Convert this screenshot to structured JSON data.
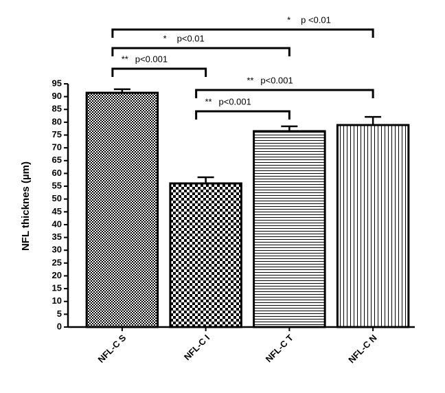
{
  "chart_data": {
    "type": "bar",
    "y_label": "NFL thicknes (µm)",
    "categories": [
      "NFL-C S",
      "NFL-C I",
      "NFL-C T",
      "NFL-C N"
    ],
    "values": [
      91.5,
      56.1,
      76.5,
      78.9
    ],
    "errors": [
      1.4,
      2.4,
      1.9,
      3.2
    ],
    "patterns": [
      "checker-fine",
      "checker",
      "horizontal",
      "vertical"
    ],
    "color": "#000000",
    "ylim": [
      0,
      95
    ],
    "yticks": [
      0,
      5,
      10,
      15,
      20,
      25,
      30,
      35,
      40,
      45,
      50,
      55,
      60,
      65,
      70,
      75,
      80,
      85,
      90,
      95
    ],
    "significance": [
      {
        "between": [
          "NFL-C S",
          "NFL-C N"
        ],
        "stars": "*",
        "label": "p <0.01"
      },
      {
        "between": [
          "NFL-C S",
          "NFL-C T"
        ],
        "stars": "*",
        "label": "p<0.01"
      },
      {
        "between": [
          "NFL-C S",
          "NFL-C I"
        ],
        "stars": "**",
        "label": "p<0.001"
      },
      {
        "between": [
          "NFL-C I",
          "NFL-C N"
        ],
        "stars": "**",
        "label": "p<0.001"
      },
      {
        "between": [
          "NFL-C I",
          "NFL-C T"
        ],
        "stars": "**",
        "label": "p<0.001"
      }
    ]
  }
}
